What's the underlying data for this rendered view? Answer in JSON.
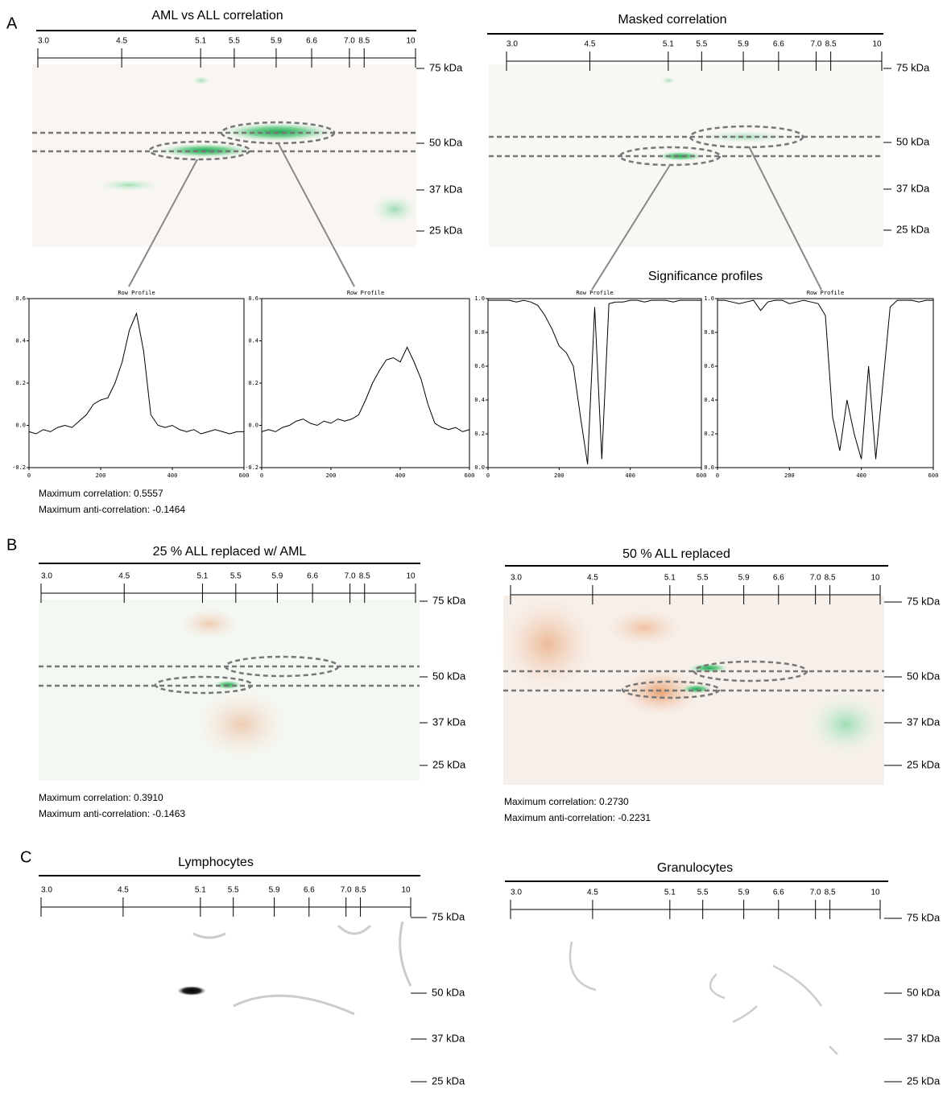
{
  "panel_labels": [
    "A",
    "B",
    "C"
  ],
  "pI_ticks": [
    {
      "value": 3,
      "label": "3.0"
    },
    4.5,
    5.1,
    5.5,
    5.9,
    6.6,
    {
      "value": 7,
      "label": "7.0"
    },
    8.5,
    10
  ],
  "mw_labels": [
    "75 kDa",
    "50 kDa",
    "37 kDa",
    "25 kDa"
  ],
  "gels": [
    {
      "title": "AML vs ALL correlation",
      "stats": [
        "Maximum correlation: 0.5557",
        "Maximum anti-correlation: -0.1464"
      ]
    },
    {
      "title": "Masked correlation",
      "stats": []
    },
    {
      "title": "25 % ALL replaced w/ AML",
      "stats": [
        "Maximum correlation: 0.3910",
        "Maximum anti-correlation: -0.1463"
      ]
    },
    {
      "title": "50 % ALL replaced",
      "stats": [
        "Maximum correlation: 0.2730",
        "Maximum anti-correlation: -0.2231"
      ]
    },
    {
      "title": "Lymphocytes",
      "stats": []
    },
    {
      "title": "Granulocytes",
      "stats": []
    }
  ],
  "significance_title": "Significance profiles",
  "profiles": {
    "type": "line",
    "title": "Row Profile",
    "x": [
      0,
      20,
      40,
      60,
      80,
      100,
      120,
      140,
      160,
      180,
      200,
      220,
      240,
      260,
      280,
      300,
      320,
      340,
      360,
      380,
      400,
      420,
      440,
      460,
      480,
      500,
      520,
      540,
      560,
      580,
      600
    ],
    "charts": [
      {
        "xlim": [
          0,
          600
        ],
        "xticks": [
          0,
          200,
          400,
          600
        ],
        "ylim": [
          -0.2,
          0.6
        ],
        "yticks": [
          -0.2,
          {
            "value": 0,
            "label": "0.0"
          },
          0.2,
          0.4,
          0.6
        ],
        "color": "#000000",
        "values": [
          -0.03,
          -0.04,
          -0.02,
          -0.03,
          -0.01,
          0.0,
          -0.01,
          0.02,
          0.05,
          0.1,
          0.12,
          0.13,
          0.2,
          0.3,
          0.45,
          0.53,
          0.35,
          0.05,
          0.0,
          -0.01,
          0.0,
          -0.02,
          -0.03,
          -0.02,
          -0.04,
          -0.03,
          -0.02,
          -0.03,
          -0.04,
          -0.03,
          -0.03
        ]
      },
      {
        "xlim": [
          0,
          600
        ],
        "xticks": [
          0,
          200,
          400,
          600
        ],
        "ylim": [
          -0.2,
          0.6
        ],
        "yticks": [
          -0.2,
          {
            "value": 0,
            "label": "0.0"
          },
          0.2,
          0.4,
          0.6
        ],
        "color": "#000000",
        "values": [
          -0.03,
          -0.02,
          -0.03,
          -0.01,
          0.0,
          0.02,
          0.03,
          0.01,
          0.0,
          0.02,
          0.01,
          0.03,
          0.02,
          0.03,
          0.05,
          0.12,
          0.2,
          0.26,
          0.31,
          0.32,
          0.3,
          0.37,
          0.3,
          0.22,
          0.1,
          0.01,
          -0.01,
          -0.02,
          -0.01,
          -0.03,
          -0.02
        ]
      },
      {
        "xlim": [
          0,
          600
        ],
        "xticks": [
          0,
          200,
          400,
          600
        ],
        "ylim": [
          0,
          1
        ],
        "yticks": [
          {
            "value": 0,
            "label": "0.0"
          },
          0.2,
          0.4,
          0.6,
          0.8,
          {
            "value": 1,
            "label": "1.0"
          }
        ],
        "color": "#000000",
        "values": [
          0.99,
          0.99,
          0.99,
          0.99,
          0.98,
          0.99,
          0.98,
          0.96,
          0.9,
          0.82,
          0.72,
          0.68,
          0.6,
          0.3,
          0.02,
          0.95,
          0.05,
          0.97,
          0.98,
          0.98,
          0.99,
          0.99,
          0.98,
          0.99,
          0.99,
          0.99,
          0.98,
          0.99,
          0.99,
          0.99,
          0.99
        ]
      },
      {
        "xlim": [
          0,
          600
        ],
        "xticks": [
          0,
          200,
          400,
          600
        ],
        "ylim": [
          0,
          1
        ],
        "yticks": [
          {
            "value": 0,
            "label": "0.0"
          },
          0.2,
          0.4,
          0.6,
          0.8,
          {
            "value": 1,
            "label": "1.0"
          }
        ],
        "color": "#000000",
        "values": [
          0.99,
          0.99,
          0.98,
          0.97,
          0.98,
          0.99,
          0.93,
          0.98,
          0.99,
          0.99,
          0.97,
          0.98,
          0.99,
          0.98,
          0.97,
          0.9,
          0.3,
          0.1,
          0.4,
          0.2,
          0.05,
          0.6,
          0.05,
          0.5,
          0.95,
          0.99,
          0.99,
          0.99,
          0.98,
          0.99,
          0.99
        ]
      }
    ]
  }
}
